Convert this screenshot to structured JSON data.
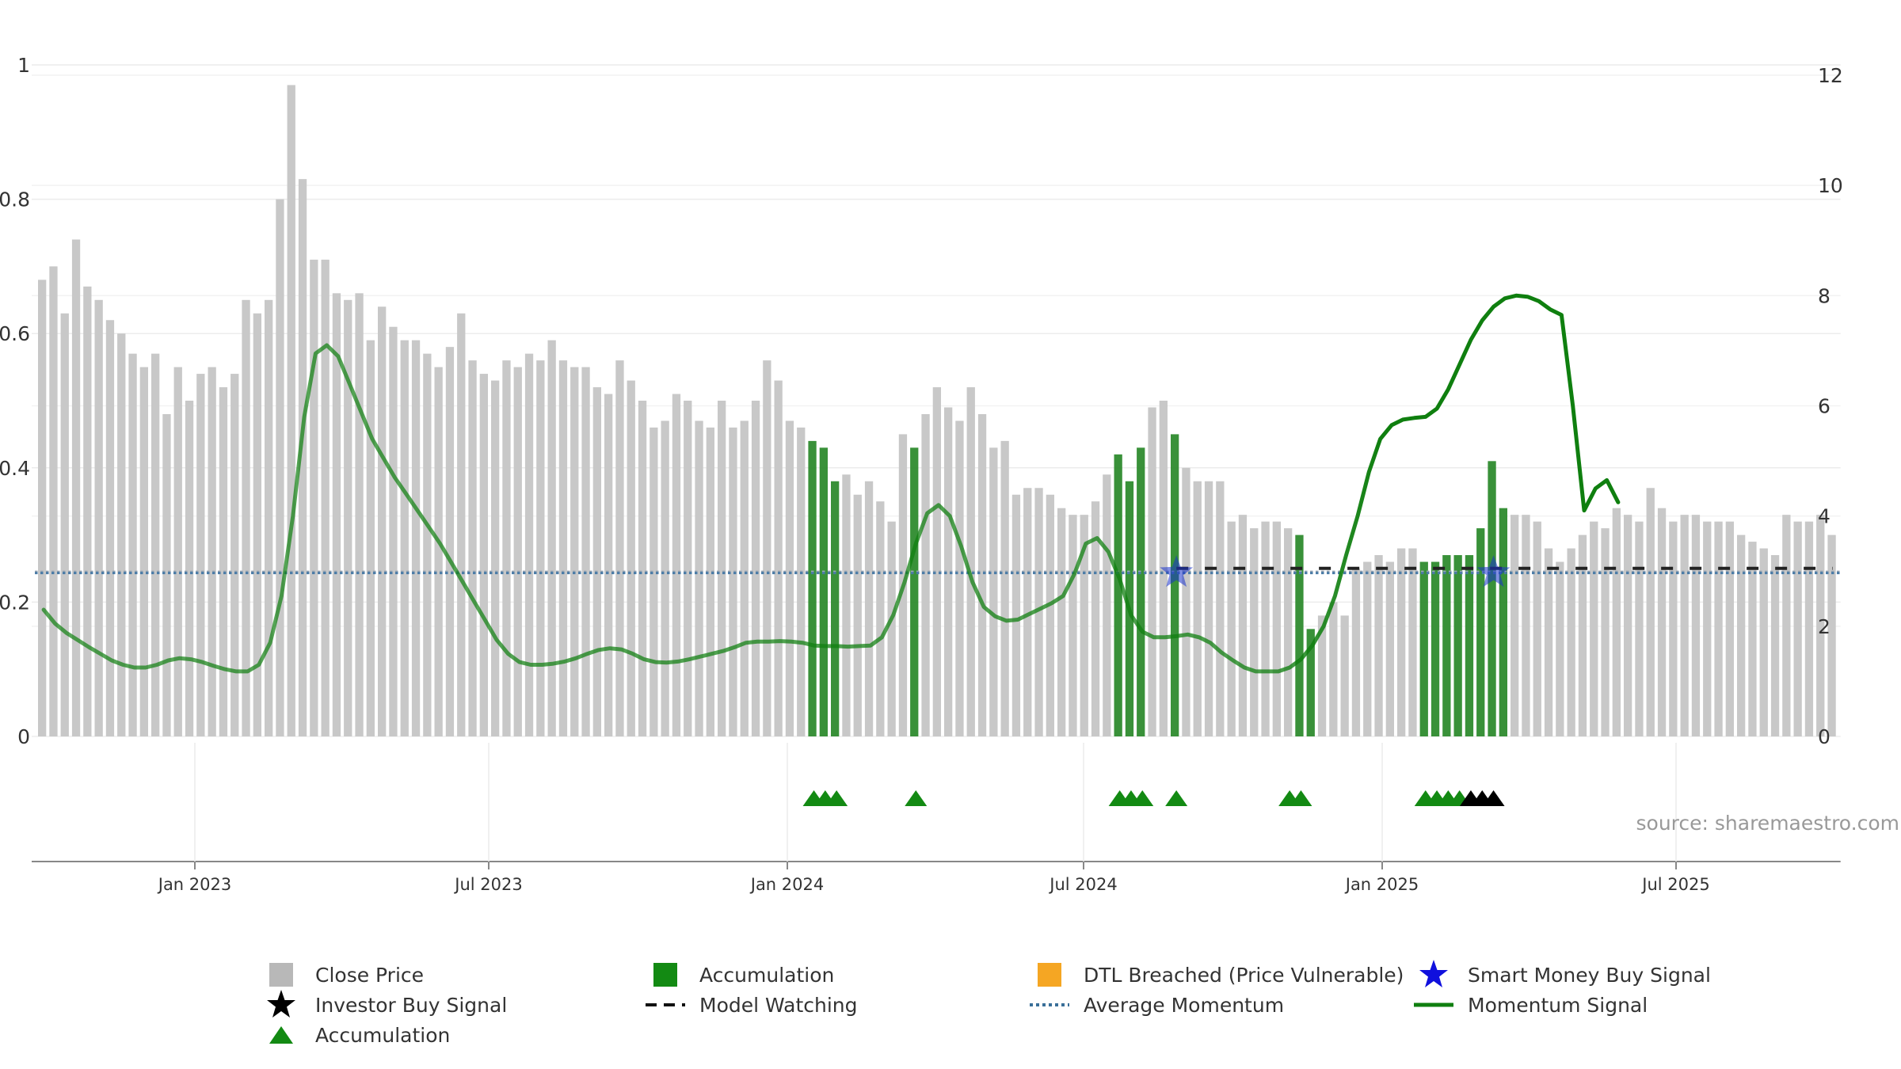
{
  "chart_data": {
    "type": "bar",
    "title": "",
    "xlabel": "",
    "ylabel": "",
    "source_label": "source: sharemaestro.com",
    "left_axis": {
      "ylim": [
        0,
        1
      ],
      "ticks": [
        "0",
        "0.2",
        "0.4",
        "0.6",
        "0.8",
        "1"
      ]
    },
    "right_axis": {
      "ylim": [
        0,
        12
      ],
      "ticks": [
        "0",
        "2",
        "4",
        "6",
        "8",
        "10",
        "12"
      ]
    },
    "x_ticks": [
      "Jan 2023",
      "Jul 2023",
      "Jan 2024",
      "Jul 2024",
      "Jan 2025",
      "Jul 2025"
    ],
    "grid": true,
    "legend_position": "bottom",
    "colors": {
      "close_price": "#c8c8c8",
      "accumulation_bar": "#2e8b2e",
      "accumulation_marker": "#138a13",
      "investor_buy": "#000000",
      "smart_money": "#1a33cc",
      "model_watching": "#222222",
      "average_momentum": "#4a7ba6",
      "momentum_signal": "#0f7f0f",
      "dtl_breached": "#f5a623"
    },
    "bars": [
      0.68,
      0.7,
      0.63,
      0.74,
      0.67,
      0.65,
      0.62,
      0.6,
      0.57,
      0.55,
      0.57,
      0.48,
      0.55,
      0.5,
      0.54,
      0.55,
      0.52,
      0.54,
      0.65,
      0.63,
      0.65,
      0.8,
      0.97,
      0.83,
      0.71,
      0.71,
      0.66,
      0.65,
      0.66,
      0.59,
      0.64,
      0.61,
      0.59,
      0.59,
      0.57,
      0.55,
      0.58,
      0.63,
      0.56,
      0.54,
      0.53,
      0.56,
      0.55,
      0.57,
      0.56,
      0.59,
      0.56,
      0.55,
      0.55,
      0.52,
      0.51,
      0.56,
      0.53,
      0.5,
      0.46,
      0.47,
      0.51,
      0.5,
      0.47,
      0.46,
      0.5,
      0.46,
      0.47,
      0.5,
      0.56,
      0.53,
      0.47,
      0.46,
      0.44,
      0.43,
      0.38,
      0.39,
      0.36,
      0.38,
      0.35,
      0.32,
      0.45,
      0.43,
      0.48,
      0.52,
      0.49,
      0.47,
      0.52,
      0.48,
      0.43,
      0.44,
      0.36,
      0.37,
      0.37,
      0.36,
      0.34,
      0.33,
      0.33,
      0.35,
      0.39,
      0.42,
      0.38,
      0.43,
      0.49,
      0.5,
      0.45,
      0.4,
      0.38,
      0.38,
      0.38,
      0.32,
      0.33,
      0.31,
      0.32,
      0.32,
      0.31,
      0.3,
      0.16,
      0.18,
      0.2,
      0.18,
      0.25,
      0.26,
      0.27,
      0.26,
      0.28,
      0.28,
      0.26,
      0.26,
      0.27,
      0.27,
      0.27,
      0.31,
      0.41,
      0.34,
      0.33,
      0.33,
      0.32,
      0.28,
      0.26,
      0.28,
      0.3,
      0.32,
      0.31,
      0.34,
      0.33,
      0.32,
      0.37,
      0.34,
      0.32,
      0.33,
      0.33,
      0.32,
      0.32,
      0.32,
      0.3,
      0.29,
      0.28,
      0.27,
      0.33,
      0.32,
      0.32,
      0.33,
      0.3
    ],
    "accumulation_bar_indices": [
      68,
      69,
      70,
      77,
      95,
      96,
      97,
      100,
      111,
      112,
      122,
      123,
      124,
      125,
      126,
      127,
      128,
      129
    ],
    "accumulation_marker_indices": [
      68,
      69,
      70,
      77,
      95,
      96,
      97,
      100,
      110,
      111,
      122,
      123,
      124,
      125
    ],
    "investor_buy_marker_indices": [
      126,
      127,
      128
    ],
    "smart_money_buy_indices": [
      100,
      128
    ],
    "model_watching_start_index": 100,
    "model_watching_value": 3.05,
    "average_momentum": 2.97,
    "momentum": [
      2.3,
      2.05,
      1.88,
      1.75,
      1.62,
      1.5,
      1.38,
      1.3,
      1.25,
      1.25,
      1.3,
      1.38,
      1.42,
      1.4,
      1.35,
      1.28,
      1.22,
      1.18,
      1.18,
      1.3,
      1.7,
      2.55,
      4.0,
      5.8,
      6.95,
      7.1,
      6.9,
      6.4,
      5.9,
      5.4,
      5.05,
      4.7,
      4.4,
      4.1,
      3.8,
      3.5,
      3.15,
      2.8,
      2.45,
      2.1,
      1.75,
      1.5,
      1.35,
      1.3,
      1.3,
      1.32,
      1.36,
      1.42,
      1.5,
      1.57,
      1.6,
      1.58,
      1.5,
      1.4,
      1.35,
      1.34,
      1.36,
      1.4,
      1.45,
      1.5,
      1.55,
      1.62,
      1.7,
      1.72,
      1.72,
      1.73,
      1.72,
      1.7,
      1.65,
      1.64,
      1.64,
      1.63,
      1.64,
      1.65,
      1.8,
      2.2,
      2.8,
      3.5,
      4.05,
      4.2,
      4.0,
      3.45,
      2.8,
      2.35,
      2.18,
      2.1,
      2.12,
      2.22,
      2.32,
      2.42,
      2.55,
      2.95,
      3.5,
      3.6,
      3.35,
      2.85,
      2.2,
      1.9,
      1.8,
      1.8,
      1.82,
      1.85,
      1.8,
      1.7,
      1.52,
      1.38,
      1.25,
      1.18,
      1.18,
      1.18,
      1.25,
      1.4,
      1.65,
      2.0,
      2.55,
      3.3,
      4.0,
      4.8,
      5.4,
      5.65,
      5.75,
      5.78,
      5.8,
      5.95,
      6.3,
      6.75,
      7.2,
      7.55,
      7.8,
      7.95,
      8.0,
      7.98,
      7.9,
      7.75,
      7.65,
      6.0,
      4.1,
      4.5,
      4.65,
      4.25
    ]
  }
}
